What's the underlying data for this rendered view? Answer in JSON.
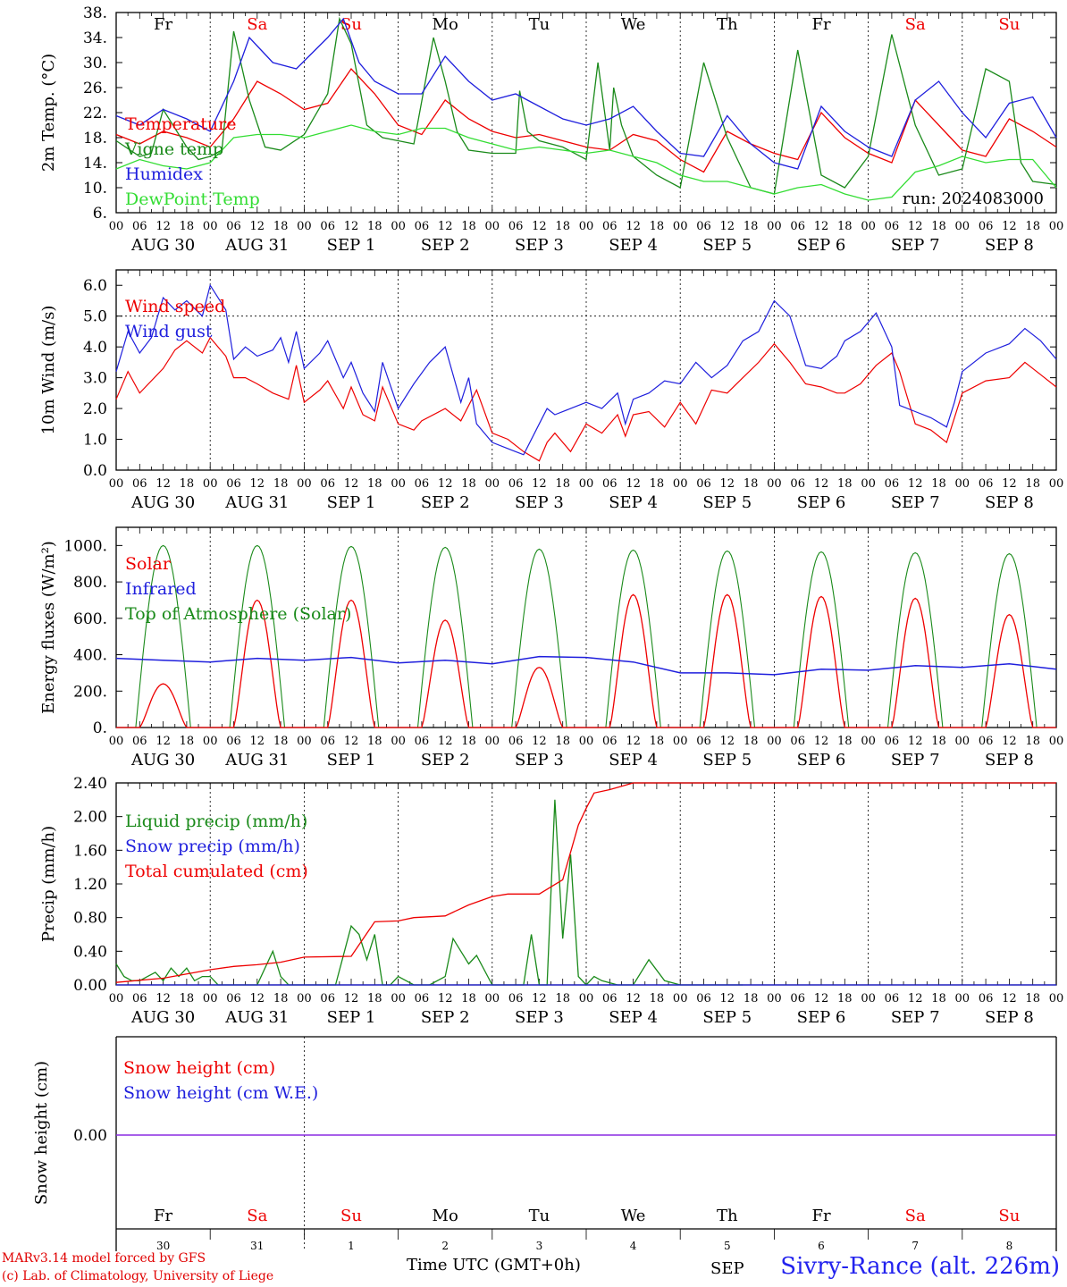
{
  "run_label": "run: 2024083000",
  "x_axis_title": "Time UTC (GMT+0h)",
  "station": "Sivry-Rance (alt. 226m)",
  "credits": [
    "MARv3.14 model forced by GFS",
    "(c) Lab. of Climatology, University of Liege"
  ],
  "date_labels": [
    "AUG 30",
    "AUG 31",
    "SEP  1",
    "SEP  2",
    "SEP  3",
    "SEP  4",
    "SEP  5",
    "SEP  6",
    "SEP  7",
    "SEP  8"
  ],
  "hour_ticks": [
    "00",
    "06",
    "12",
    "18"
  ],
  "weekdays": [
    {
      "name": "Fr",
      "weekend": false
    },
    {
      "name": "Sa",
      "weekend": true
    },
    {
      "name": "Su",
      "weekend": true
    },
    {
      "name": "Mo",
      "weekend": false
    },
    {
      "name": "Tu",
      "weekend": false
    },
    {
      "name": "We",
      "weekend": false
    },
    {
      "name": "Th",
      "weekend": false
    },
    {
      "name": "Fr",
      "weekend": false
    },
    {
      "name": "Sa",
      "weekend": true
    },
    {
      "name": "Su",
      "weekend": true
    }
  ],
  "day_numbers": [
    "30",
    "31",
    "1",
    "2",
    "3",
    "4",
    "5",
    "6",
    "7",
    "8"
  ],
  "colors": {
    "red": "#ee0000",
    "green": "#1a8a1a",
    "blue": "#1f1fdd",
    "lightgreen": "#33dd33",
    "purple": "#8a2be2",
    "weekend": "#ee0000",
    "axis": "#000000"
  },
  "chart_data": [
    {
      "type": "line",
      "ylabel": "2m Temp. (°C)",
      "ylim": [
        6,
        38
      ],
      "yticks": [
        "6.",
        "10.",
        "14.",
        "18.",
        "22.",
        "26.",
        "30.",
        "34.",
        "38."
      ],
      "x_unit": "hours since AUG 30 00 UTC",
      "series": [
        {
          "name": "Temperature",
          "color": "red",
          "x": [
            0,
            6,
            12,
            18,
            24,
            30,
            36,
            42,
            48,
            54,
            60,
            66,
            72,
            78,
            84,
            90,
            96,
            102,
            108,
            114,
            120,
            126,
            132,
            138,
            144,
            150,
            156,
            162,
            168,
            174,
            180,
            186,
            192,
            198,
            204,
            210,
            216,
            222,
            228,
            234,
            240
          ],
          "y": [
            18.5,
            17,
            19,
            18,
            16.5,
            21,
            27,
            25,
            22.5,
            23.5,
            29,
            25,
            20,
            18.5,
            24,
            21,
            19,
            18,
            18.5,
            17.5,
            16.5,
            16,
            18.5,
            17.5,
            14.5,
            12.5,
            19,
            17,
            15.5,
            14.5,
            22,
            18,
            15.5,
            14,
            24,
            20,
            16,
            15,
            21,
            19,
            16.5
          ]
        },
        {
          "name": "Vigne temp",
          "color": "green",
          "x": [
            0,
            6,
            9,
            12,
            18,
            21,
            24,
            27,
            30,
            34,
            38,
            42,
            48,
            54,
            57,
            60,
            64,
            68,
            72,
            76,
            81,
            84,
            87,
            90,
            96,
            102,
            103,
            105,
            108,
            114,
            120,
            123,
            126,
            127,
            129,
            132,
            134,
            136,
            138,
            144,
            150,
            156,
            162,
            168,
            174,
            180,
            186,
            192,
            198,
            204,
            210,
            216,
            222,
            228,
            231,
            234,
            240
          ],
          "y": [
            17.5,
            15,
            15.5,
            22.5,
            16.5,
            14.5,
            15,
            16,
            35,
            24,
            16.5,
            16,
            18.5,
            25,
            37,
            33,
            20,
            18,
            17.5,
            17,
            34,
            27,
            19,
            16,
            15.5,
            15.5,
            25.5,
            19,
            17.5,
            16.5,
            14.5,
            30,
            16,
            26,
            20,
            15,
            14,
            13,
            12,
            10,
            30,
            18,
            10,
            9,
            32,
            12,
            10,
            15,
            34.5,
            20,
            12,
            13,
            29,
            27,
            14,
            11,
            10.5
          ]
        },
        {
          "name": "Humidex",
          "color": "blue",
          "x": [
            0,
            6,
            12,
            18,
            24,
            30,
            34,
            40,
            46,
            54,
            58,
            62,
            66,
            72,
            78,
            84,
            90,
            96,
            102,
            108,
            114,
            120,
            126,
            132,
            138,
            144,
            150,
            156,
            162,
            168,
            174,
            180,
            186,
            192,
            198,
            204,
            210,
            216,
            222,
            228,
            234,
            240
          ],
          "y": [
            21.5,
            20,
            22.5,
            21,
            19,
            27,
            34,
            30,
            29,
            34,
            37,
            30,
            27,
            25,
            25,
            31,
            27,
            24,
            25,
            23,
            21,
            20,
            21,
            23,
            19,
            15.5,
            15,
            21.5,
            17,
            14,
            13,
            23,
            19,
            16.5,
            15,
            24,
            27,
            22,
            18,
            23.5,
            24.5,
            18
          ]
        },
        {
          "name": "DewPoint Temp",
          "color": "lightgreen",
          "x": [
            0,
            6,
            12,
            18,
            24,
            30,
            36,
            42,
            48,
            54,
            60,
            66,
            72,
            78,
            84,
            90,
            96,
            102,
            108,
            114,
            120,
            126,
            132,
            138,
            144,
            150,
            156,
            162,
            168,
            174,
            180,
            186,
            192,
            198,
            204,
            210,
            216,
            222,
            228,
            234,
            240
          ],
          "y": [
            13,
            14.5,
            13.5,
            13,
            14,
            18,
            18.5,
            18.5,
            18,
            19,
            20,
            19,
            18.5,
            19.5,
            19.5,
            18,
            17,
            16,
            16.5,
            16,
            15.5,
            16,
            15,
            14,
            12,
            11,
            11,
            10,
            9,
            10,
            10.5,
            9,
            8,
            8.5,
            12.5,
            13.5,
            15,
            14,
            14.5,
            14.5,
            10
          ]
        }
      ]
    },
    {
      "type": "line",
      "ylabel": "10m Wind (m/s)",
      "ylim": [
        0,
        6.5
      ],
      "yticks": [
        "0.0",
        "1.0",
        "2.0",
        "3.0",
        "4.0",
        "5.0",
        "6.0"
      ],
      "reference_line": 5.0,
      "series": [
        {
          "name": "Wind speed",
          "color": "red",
          "x": [
            0,
            3,
            6,
            12,
            15,
            18,
            22,
            24,
            28,
            30,
            33,
            36,
            40,
            44,
            46,
            48,
            52,
            54,
            58,
            60,
            63,
            66,
            68,
            72,
            76,
            78,
            84,
            88,
            92,
            96,
            100,
            104,
            108,
            110,
            112,
            116,
            120,
            124,
            128,
            130,
            132,
            136,
            140,
            144,
            148,
            152,
            156,
            160,
            164,
            168,
            172,
            176,
            180,
            184,
            186,
            190,
            194,
            198,
            200,
            204,
            208,
            212,
            216,
            222,
            228,
            232,
            236,
            240
          ],
          "y": [
            2.3,
            3.2,
            2.5,
            3.3,
            3.9,
            4.2,
            3.8,
            4.3,
            3.7,
            3.0,
            3.0,
            2.8,
            2.5,
            2.3,
            3.4,
            2.2,
            2.6,
            2.9,
            2.0,
            2.7,
            1.8,
            1.6,
            2.7,
            1.5,
            1.3,
            1.6,
            2.0,
            1.6,
            2.6,
            1.2,
            1.0,
            0.6,
            0.3,
            0.9,
            1.2,
            0.6,
            1.5,
            1.2,
            1.8,
            1.1,
            1.8,
            1.9,
            1.4,
            2.2,
            1.5,
            2.6,
            2.5,
            3.0,
            3.5,
            4.1,
            3.5,
            2.8,
            2.7,
            2.5,
            2.5,
            2.8,
            3.4,
            3.8,
            3.2,
            1.5,
            1.3,
            0.9,
            2.5,
            2.9,
            3.0,
            3.5,
            3.1,
            2.7
          ]
        },
        {
          "name": "Wind gust",
          "color": "blue",
          "x": [
            0,
            3,
            6,
            9,
            12,
            15,
            18,
            22,
            24,
            28,
            30,
            33,
            36,
            40,
            42,
            44,
            46,
            48,
            52,
            54,
            58,
            60,
            63,
            66,
            68,
            72,
            76,
            80,
            84,
            88,
            90,
            92,
            96,
            100,
            104,
            108,
            110,
            112,
            116,
            120,
            124,
            128,
            130,
            132,
            136,
            140,
            144,
            148,
            152,
            156,
            160,
            164,
            168,
            172,
            176,
            180,
            184,
            186,
            190,
            194,
            198,
            200,
            204,
            208,
            212,
            214,
            216,
            222,
            228,
            232,
            236,
            240
          ],
          "y": [
            3.2,
            4.5,
            3.8,
            4.3,
            5.6,
            5.2,
            5.5,
            5.0,
            6.0,
            5.2,
            3.6,
            4.0,
            3.7,
            3.9,
            4.3,
            3.5,
            4.5,
            3.3,
            3.8,
            4.2,
            3.0,
            3.5,
            2.5,
            1.9,
            3.5,
            2.0,
            2.8,
            3.5,
            4.0,
            2.2,
            3.0,
            1.5,
            0.9,
            0.7,
            0.5,
            1.5,
            2.0,
            1.8,
            2.0,
            2.2,
            2.0,
            2.5,
            1.5,
            2.3,
            2.5,
            2.9,
            2.8,
            3.5,
            3.0,
            3.4,
            4.2,
            4.5,
            5.5,
            5.0,
            3.4,
            3.3,
            3.7,
            4.2,
            4.5,
            5.1,
            4.0,
            2.1,
            1.9,
            1.7,
            1.4,
            2.2,
            3.2,
            3.8,
            4.1,
            4.6,
            4.2,
            3.6
          ]
        }
      ]
    },
    {
      "type": "line",
      "ylabel": "Energy fluxes (W/m²)",
      "ylim": [
        0,
        1100
      ],
      "yticks": [
        "0.",
        "200.",
        "400.",
        "600.",
        "800.",
        "1000."
      ],
      "series": [
        {
          "name": "Solar",
          "color": "red",
          "daily_peak": [
            240,
            700,
            700,
            590,
            330,
            730,
            730,
            720,
            710,
            620
          ]
        },
        {
          "name": "Infrared",
          "color": "blue",
          "x": [
            0,
            12,
            24,
            36,
            48,
            60,
            72,
            84,
            96,
            108,
            120,
            132,
            144,
            156,
            168,
            180,
            192,
            204,
            216,
            228,
            240
          ],
          "y": [
            380,
            370,
            360,
            380,
            370,
            385,
            355,
            370,
            350,
            390,
            385,
            360,
            300,
            300,
            290,
            320,
            315,
            340,
            330,
            350,
            320
          ]
        },
        {
          "name": "Top of Atmosphere (Solar)",
          "color": "green",
          "daily_peak": [
            1000,
            1000,
            995,
            990,
            980,
            975,
            970,
            965,
            960,
            955
          ]
        }
      ]
    },
    {
      "type": "line",
      "ylabel": "Precip (mm/h)",
      "ylim": [
        0,
        2.4
      ],
      "yticks": [
        "0.00",
        "0.40",
        "0.80",
        "1.20",
        "1.60",
        "2.00",
        "2.40"
      ],
      "series": [
        {
          "name": "Liquid precip (mm/h)",
          "color": "green",
          "x": [
            0,
            2,
            4,
            6,
            8,
            10,
            12,
            14,
            16,
            18,
            20,
            22,
            24,
            26,
            30,
            36,
            40,
            42,
            44,
            48,
            56,
            60,
            62,
            64,
            66,
            68,
            70,
            72,
            76,
            80,
            84,
            86,
            88,
            90,
            92,
            96,
            104,
            106,
            108,
            110,
            112,
            114,
            116,
            118,
            120,
            122,
            124,
            128,
            132,
            136,
            140,
            144,
            148,
            150,
            152,
            156,
            160
          ],
          "y": [
            0.25,
            0.1,
            0.05,
            0.05,
            0.1,
            0.15,
            0.05,
            0.2,
            0.1,
            0.2,
            0.05,
            0.1,
            0.1,
            0,
            0,
            0,
            0.4,
            0.1,
            0,
            0,
            0,
            0.7,
            0.6,
            0.3,
            0.6,
            0,
            0,
            0.1,
            0,
            0,
            0.1,
            0.55,
            0.4,
            0.25,
            0.35,
            0,
            0,
            0.6,
            0,
            0,
            2.2,
            0.55,
            1.55,
            0.1,
            0,
            0.1,
            0.05,
            0,
            0,
            0.3,
            0.05,
            0,
            0,
            0,
            0,
            0,
            0
          ]
        },
        {
          "name": "Snow precip (mm/h)",
          "color": "blue",
          "x": [
            0,
            240
          ],
          "y": [
            0,
            0
          ]
        },
        {
          "name": "Total cumulated (cm)",
          "color": "red",
          "x": [
            0,
            12,
            24,
            30,
            36,
            42,
            48,
            60,
            66,
            72,
            76,
            84,
            90,
            96,
            100,
            108,
            114,
            118,
            120,
            122,
            126,
            132,
            240
          ],
          "y": [
            0.03,
            0.08,
            0.18,
            0.22,
            0.24,
            0.27,
            0.33,
            0.34,
            0.75,
            0.76,
            0.8,
            0.82,
            0.95,
            1.05,
            1.08,
            1.08,
            1.25,
            1.9,
            2.1,
            2.28,
            2.32,
            2.4,
            2.4
          ]
        }
      ]
    },
    {
      "type": "line",
      "ylabel": "Snow height (cm)",
      "yticks": [
        "0.00"
      ],
      "series": [
        {
          "name": "Snow height (cm)",
          "color": "red",
          "x": [
            0,
            240
          ],
          "y": [
            0,
            0
          ]
        },
        {
          "name": "Snow height (cm W.E.)",
          "color": "blue",
          "x": [
            0,
            240
          ],
          "y": [
            0,
            0
          ]
        }
      ]
    }
  ],
  "bottom_axis_partial_label": "SEP"
}
